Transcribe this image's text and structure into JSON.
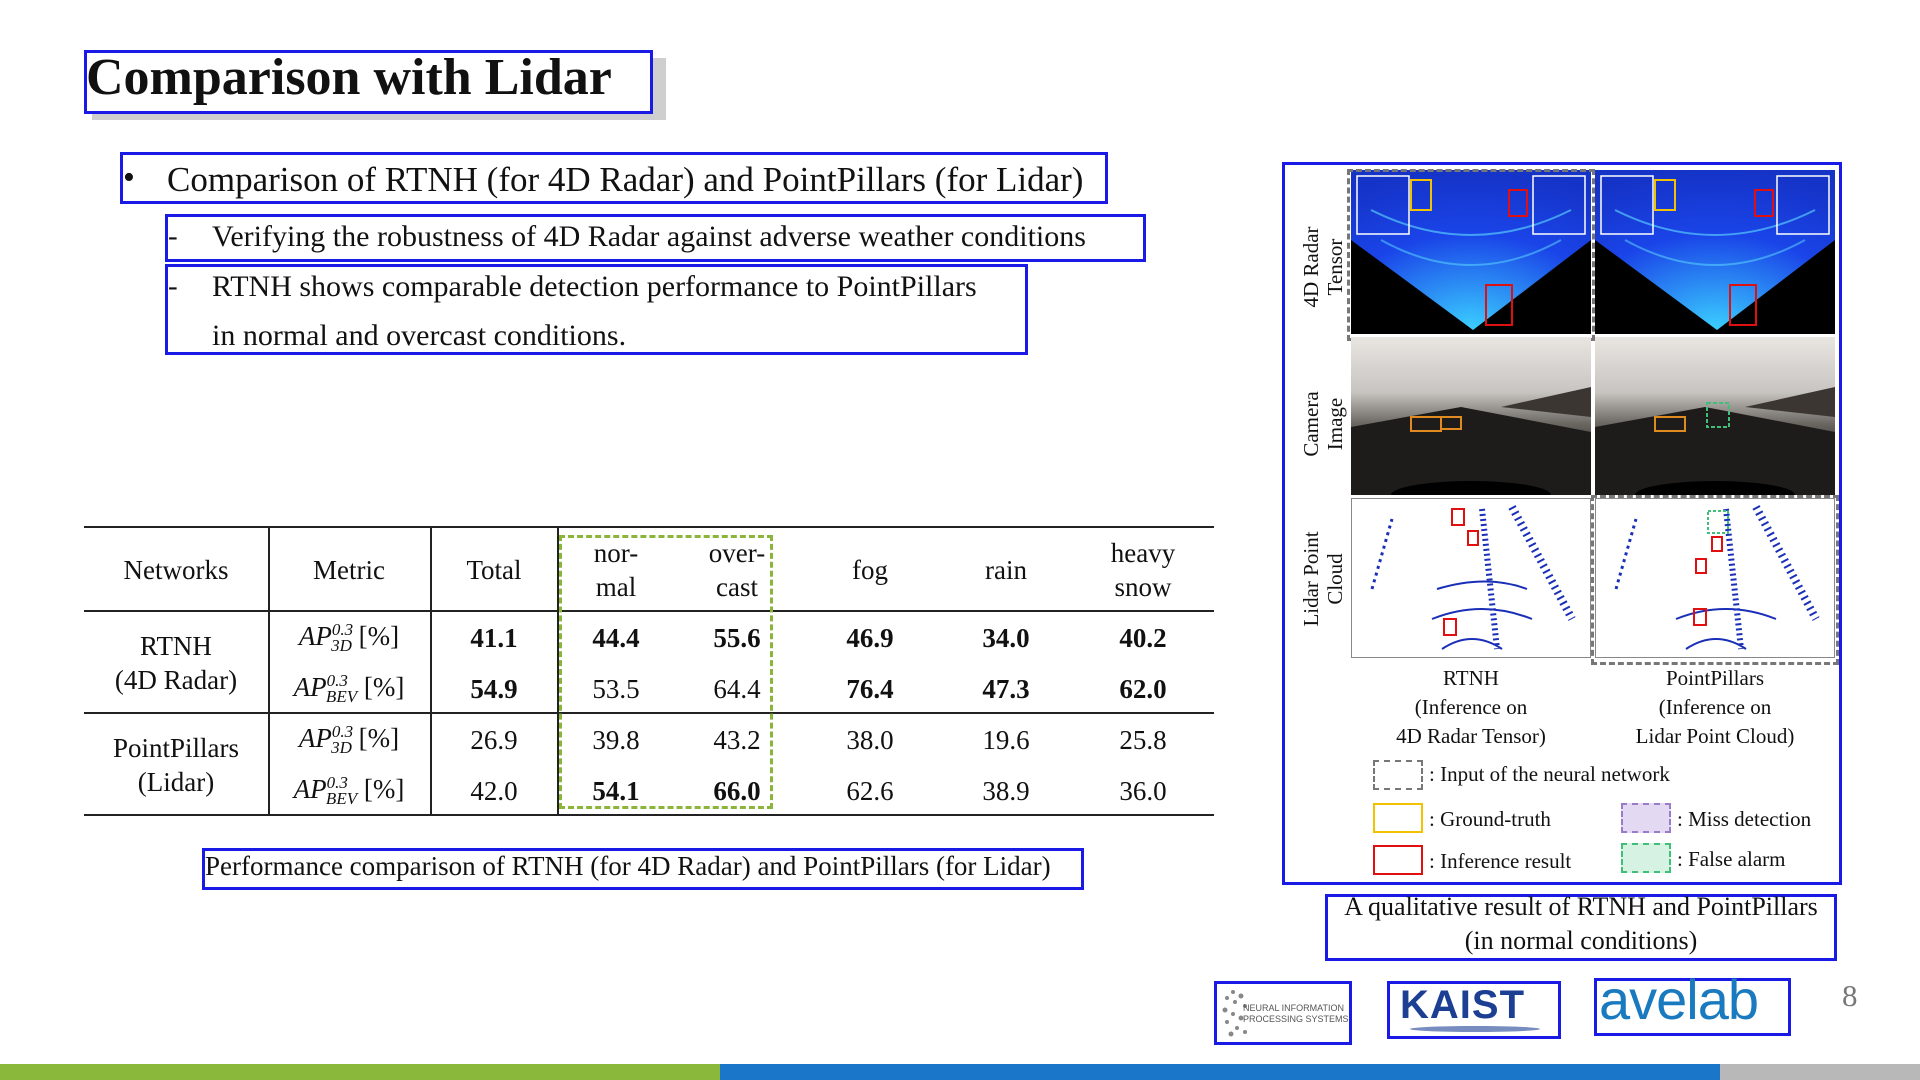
{
  "title": "Comparison with Lidar",
  "bullets": {
    "main": "Comparison of RTNH (for 4D Radar) and PointPillars (for Lidar)",
    "sub1": "Verifying the robustness of 4D Radar against adverse weather conditions",
    "sub2_line1": "RTNH shows comparable detection performance to PointPillars",
    "sub2_line2": "in normal and overcast conditions.",
    "dot": "•",
    "dash": "-"
  },
  "table": {
    "headers": {
      "networks": "Networks",
      "metric": "Metric",
      "total": "Total",
      "normal_1": "nor-",
      "normal_2": "mal",
      "overcast_1": "over-",
      "overcast_2": "cast",
      "fog": "fog",
      "rain": "rain",
      "heavy_snow_1": "heavy",
      "heavy_snow_2": "snow"
    },
    "groups": [
      {
        "name_1": "RTNH",
        "name_2": "(4D Radar)",
        "rows": [
          {
            "metric_base": "AP",
            "metric_sup": "0.3",
            "metric_sub": "3D",
            "metric_unit": " [%]",
            "values": [
              "41.1",
              "44.4",
              "55.6",
              "46.9",
              "34.0",
              "40.2"
            ],
            "bold": [
              true,
              true,
              true,
              true,
              true,
              true
            ]
          },
          {
            "metric_base": "AP",
            "metric_sup": "0.3",
            "metric_sub": "BEV",
            "metric_unit": " [%]",
            "values": [
              "54.9",
              "53.5",
              "64.4",
              "76.4",
              "47.3",
              "62.0"
            ],
            "bold": [
              true,
              false,
              false,
              true,
              true,
              true
            ]
          }
        ]
      },
      {
        "name_1": "PointPillars",
        "name_2": "(Lidar)",
        "rows": [
          {
            "metric_base": "AP",
            "metric_sup": "0.3",
            "metric_sub": "3D",
            "metric_unit": " [%]",
            "values": [
              "26.9",
              "39.8",
              "43.2",
              "38.0",
              "19.6",
              "25.8"
            ],
            "bold": [
              false,
              false,
              false,
              false,
              false,
              false
            ]
          },
          {
            "metric_base": "AP",
            "metric_sup": "0.3",
            "metric_sub": "BEV",
            "metric_unit": " [%]",
            "values": [
              "42.0",
              "54.1",
              "66.0",
              "62.6",
              "38.9",
              "36.0"
            ],
            "bold": [
              false,
              true,
              true,
              false,
              false,
              false
            ]
          }
        ]
      }
    ],
    "caption": "Performance comparison of RTNH (for 4D Radar) and PointPillars (for Lidar)"
  },
  "figure": {
    "row_labels": {
      "radar_1": "4D Radar",
      "radar_2": "Tensor",
      "camera_1": "Camera",
      "camera_2": "Image",
      "lidar_1": "Lidar Point",
      "lidar_2": "Cloud"
    },
    "col_captions": {
      "rtnh_1": "RTNH",
      "rtnh_2": "(Inference on",
      "rtnh_3": "4D Radar Tensor)",
      "pp_1": "PointPillars",
      "pp_2": "(Inference on",
      "pp_3": "Lidar Point Cloud)"
    },
    "legend": {
      "input": ": Input of the neural network",
      "gt": ": Ground-truth",
      "miss": ": Miss detection",
      "inference": ": Inference result",
      "false_alarm": ": False alarm"
    },
    "caption_1": "A qualitative result of RTNH and PointPillars",
    "caption_2": "(in normal conditions)"
  },
  "logos": {
    "nips_1": "NEURAL INFORMATION",
    "nips_2": "PROCESSING SYSTEMS",
    "kaist": "KAIST",
    "avelab": "avelab"
  },
  "page_number": "8",
  "colors": {
    "frame_blue": "#1a1ae6",
    "dash_green": "#8bb43a",
    "bar_green": "#8ab83a",
    "bar_blue": "#1976c8",
    "bar_gray": "#b8b8b8",
    "gt_yellow": "#f2c200",
    "inference_red": "#e01010",
    "miss_purple": "#b79ddb",
    "false_green": "#3fbf7a"
  }
}
